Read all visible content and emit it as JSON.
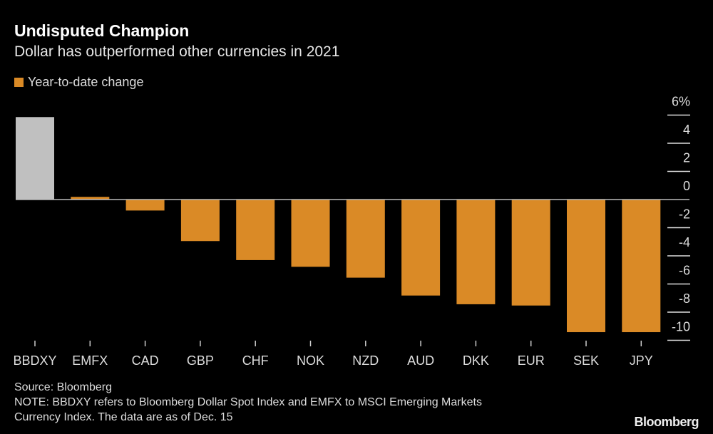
{
  "title": "Undisputed Champion",
  "subtitle": "Dollar has outperformed other currencies in 2021",
  "legend": {
    "label": "Year-to-date change",
    "color": "#da8a26"
  },
  "chart_data": {
    "type": "bar",
    "categories": [
      "BBDXY",
      "EMFX",
      "CAD",
      "GBP",
      "CHF",
      "NOK",
      "NZD",
      "AUD",
      "DKK",
      "EUR",
      "SEK",
      "JPY"
    ],
    "series": [
      {
        "name": "Year-to-date change",
        "values": [
          5.86,
          0.19,
          -0.78,
          -2.95,
          -4.3,
          -4.78,
          -5.55,
          -6.82,
          -7.44,
          -7.53,
          -9.42,
          -9.42
        ]
      }
    ],
    "highlight": {
      "category": "BBDXY",
      "color": "#c0c0c0"
    },
    "bar_color": "#da8a26",
    "ylim": [
      -10,
      6
    ],
    "yticks": [
      6,
      4,
      2,
      0,
      -2,
      -4,
      -6,
      -8,
      -10
    ],
    "ytick_labels": [
      "6%",
      "4",
      "2",
      "0",
      "-2",
      "-4",
      "-6",
      "-8",
      "-10"
    ],
    "yaxis_position": "right",
    "grid": false
  },
  "footer": {
    "source": "Source: Bloomberg",
    "note_line1": "NOTE: BBDXY refers to Bloomberg Dollar Spot Index and EMFX to MSCI Emerging Markets",
    "note_line2": "Currency Index. The data are as of Dec. 15"
  },
  "logo": "Bloomberg"
}
